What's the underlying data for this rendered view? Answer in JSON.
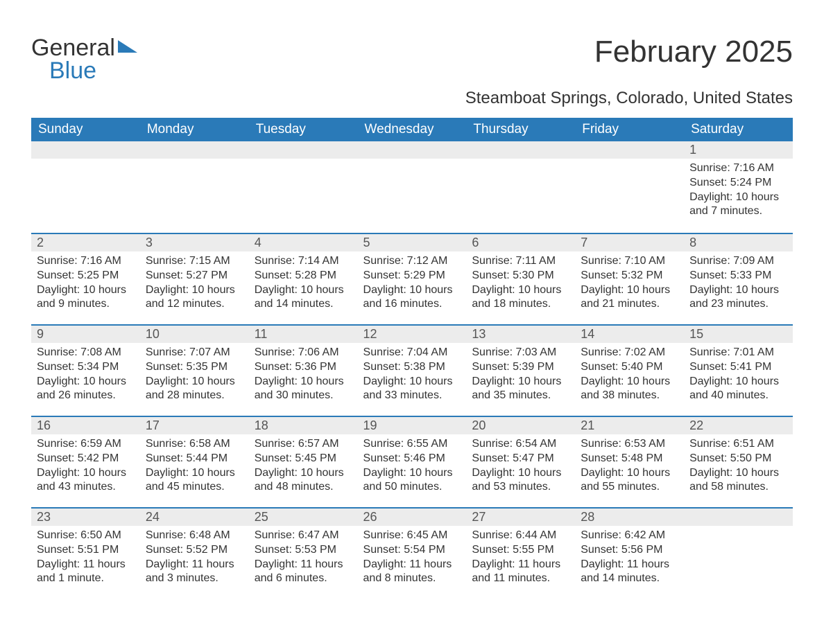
{
  "logo": {
    "text1": "General",
    "text2": "Blue",
    "accent_color": "#2a7ab8"
  },
  "title": "February 2025",
  "location": "Steamboat Springs, Colorado, United States",
  "colors": {
    "header_bg": "#2a7ab8",
    "header_text": "#ffffff",
    "daynum_bg": "#ececec",
    "row_divider": "#2a7ab8",
    "body_text": "#333333",
    "page_bg": "#ffffff"
  },
  "weekdays": [
    "Sunday",
    "Monday",
    "Tuesday",
    "Wednesday",
    "Thursday",
    "Friday",
    "Saturday"
  ],
  "weeks": [
    [
      null,
      null,
      null,
      null,
      null,
      null,
      {
        "n": "1",
        "sr": "Sunrise: 7:16 AM",
        "ss": "Sunset: 5:24 PM",
        "dl": "Daylight: 10 hours and 7 minutes."
      }
    ],
    [
      {
        "n": "2",
        "sr": "Sunrise: 7:16 AM",
        "ss": "Sunset: 5:25 PM",
        "dl": "Daylight: 10 hours and 9 minutes."
      },
      {
        "n": "3",
        "sr": "Sunrise: 7:15 AM",
        "ss": "Sunset: 5:27 PM",
        "dl": "Daylight: 10 hours and 12 minutes."
      },
      {
        "n": "4",
        "sr": "Sunrise: 7:14 AM",
        "ss": "Sunset: 5:28 PM",
        "dl": "Daylight: 10 hours and 14 minutes."
      },
      {
        "n": "5",
        "sr": "Sunrise: 7:12 AM",
        "ss": "Sunset: 5:29 PM",
        "dl": "Daylight: 10 hours and 16 minutes."
      },
      {
        "n": "6",
        "sr": "Sunrise: 7:11 AM",
        "ss": "Sunset: 5:30 PM",
        "dl": "Daylight: 10 hours and 18 minutes."
      },
      {
        "n": "7",
        "sr": "Sunrise: 7:10 AM",
        "ss": "Sunset: 5:32 PM",
        "dl": "Daylight: 10 hours and 21 minutes."
      },
      {
        "n": "8",
        "sr": "Sunrise: 7:09 AM",
        "ss": "Sunset: 5:33 PM",
        "dl": "Daylight: 10 hours and 23 minutes."
      }
    ],
    [
      {
        "n": "9",
        "sr": "Sunrise: 7:08 AM",
        "ss": "Sunset: 5:34 PM",
        "dl": "Daylight: 10 hours and 26 minutes."
      },
      {
        "n": "10",
        "sr": "Sunrise: 7:07 AM",
        "ss": "Sunset: 5:35 PM",
        "dl": "Daylight: 10 hours and 28 minutes."
      },
      {
        "n": "11",
        "sr": "Sunrise: 7:06 AM",
        "ss": "Sunset: 5:36 PM",
        "dl": "Daylight: 10 hours and 30 minutes."
      },
      {
        "n": "12",
        "sr": "Sunrise: 7:04 AM",
        "ss": "Sunset: 5:38 PM",
        "dl": "Daylight: 10 hours and 33 minutes."
      },
      {
        "n": "13",
        "sr": "Sunrise: 7:03 AM",
        "ss": "Sunset: 5:39 PM",
        "dl": "Daylight: 10 hours and 35 minutes."
      },
      {
        "n": "14",
        "sr": "Sunrise: 7:02 AM",
        "ss": "Sunset: 5:40 PM",
        "dl": "Daylight: 10 hours and 38 minutes."
      },
      {
        "n": "15",
        "sr": "Sunrise: 7:01 AM",
        "ss": "Sunset: 5:41 PM",
        "dl": "Daylight: 10 hours and 40 minutes."
      }
    ],
    [
      {
        "n": "16",
        "sr": "Sunrise: 6:59 AM",
        "ss": "Sunset: 5:42 PM",
        "dl": "Daylight: 10 hours and 43 minutes."
      },
      {
        "n": "17",
        "sr": "Sunrise: 6:58 AM",
        "ss": "Sunset: 5:44 PM",
        "dl": "Daylight: 10 hours and 45 minutes."
      },
      {
        "n": "18",
        "sr": "Sunrise: 6:57 AM",
        "ss": "Sunset: 5:45 PM",
        "dl": "Daylight: 10 hours and 48 minutes."
      },
      {
        "n": "19",
        "sr": "Sunrise: 6:55 AM",
        "ss": "Sunset: 5:46 PM",
        "dl": "Daylight: 10 hours and 50 minutes."
      },
      {
        "n": "20",
        "sr": "Sunrise: 6:54 AM",
        "ss": "Sunset: 5:47 PM",
        "dl": "Daylight: 10 hours and 53 minutes."
      },
      {
        "n": "21",
        "sr": "Sunrise: 6:53 AM",
        "ss": "Sunset: 5:48 PM",
        "dl": "Daylight: 10 hours and 55 minutes."
      },
      {
        "n": "22",
        "sr": "Sunrise: 6:51 AM",
        "ss": "Sunset: 5:50 PM",
        "dl": "Daylight: 10 hours and 58 minutes."
      }
    ],
    [
      {
        "n": "23",
        "sr": "Sunrise: 6:50 AM",
        "ss": "Sunset: 5:51 PM",
        "dl": "Daylight: 11 hours and 1 minute."
      },
      {
        "n": "24",
        "sr": "Sunrise: 6:48 AM",
        "ss": "Sunset: 5:52 PM",
        "dl": "Daylight: 11 hours and 3 minutes."
      },
      {
        "n": "25",
        "sr": "Sunrise: 6:47 AM",
        "ss": "Sunset: 5:53 PM",
        "dl": "Daylight: 11 hours and 6 minutes."
      },
      {
        "n": "26",
        "sr": "Sunrise: 6:45 AM",
        "ss": "Sunset: 5:54 PM",
        "dl": "Daylight: 11 hours and 8 minutes."
      },
      {
        "n": "27",
        "sr": "Sunrise: 6:44 AM",
        "ss": "Sunset: 5:55 PM",
        "dl": "Daylight: 11 hours and 11 minutes."
      },
      {
        "n": "28",
        "sr": "Sunrise: 6:42 AM",
        "ss": "Sunset: 5:56 PM",
        "dl": "Daylight: 11 hours and 14 minutes."
      },
      null
    ]
  ]
}
